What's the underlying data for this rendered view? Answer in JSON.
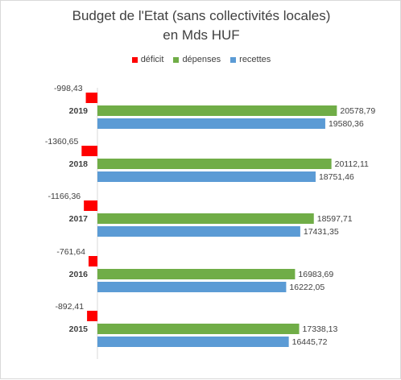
{
  "chart_data": {
    "type": "bar",
    "orientation": "horizontal",
    "title_lines": [
      "Budget de l'Etat (sans collectivités locales)",
      "en Mds HUF"
    ],
    "categories": [
      "2019",
      "2018",
      "2017",
      "2016",
      "2015"
    ],
    "series": [
      {
        "name": "déficit",
        "color": "#ff0000",
        "values": [
          -998.43,
          -1360.65,
          -1166.36,
          -761.64,
          -892.41
        ],
        "labels": [
          "-998,43",
          "-1360,65",
          "-1166,36",
          "-761,64",
          "-892,41"
        ]
      },
      {
        "name": "dépenses",
        "color": "#70ad47",
        "values": [
          20578.79,
          20112.11,
          18597.71,
          16983.69,
          17338.13
        ],
        "labels": [
          "20578,79",
          "20112,11",
          "18597,71",
          "16983,69",
          "17338,13"
        ]
      },
      {
        "name": "recettes",
        "color": "#5b9bd5",
        "values": [
          19580.36,
          18751.46,
          17431.35,
          16222.05,
          16445.72
        ],
        "labels": [
          "19580,36",
          "18751,46",
          "17431,35",
          "16222,05",
          "16445,72"
        ]
      }
    ],
    "legend_position": "top",
    "grid": false,
    "xlim": [
      -1400,
      21000
    ]
  }
}
